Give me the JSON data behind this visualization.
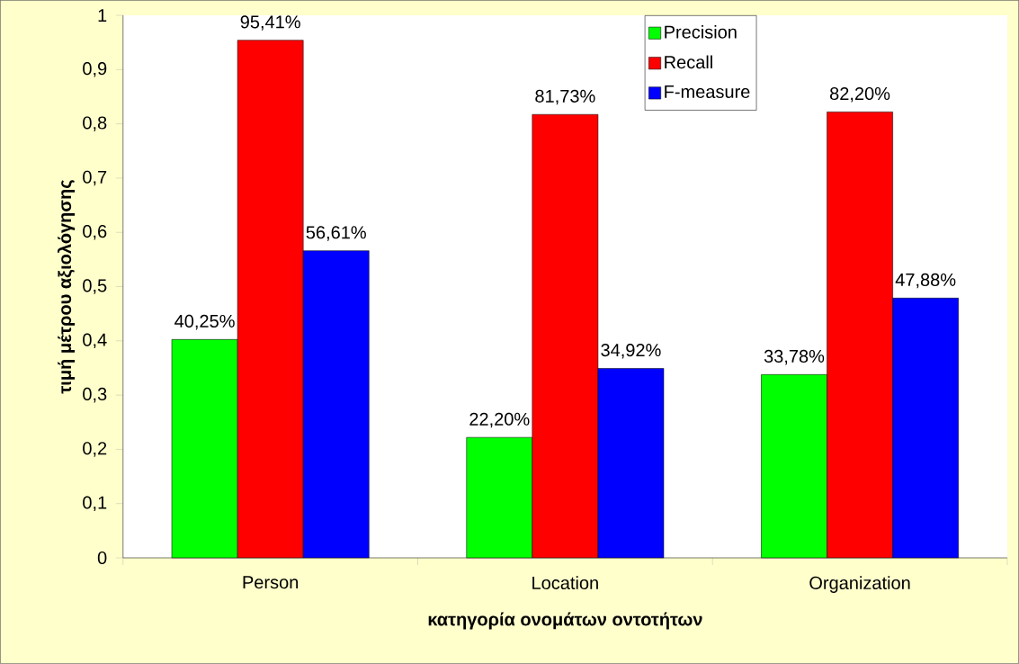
{
  "chart_data": {
    "type": "bar",
    "xlabel": "κατηγορία ονομάτων οντοτήτων",
    "ylabel": "τιμή μέτρου αξιολόγησης",
    "categories": [
      "Person",
      "Location",
      "Organization"
    ],
    "series": [
      {
        "name": "Precision",
        "color": "#00ff00",
        "values": [
          0.4025,
          0.222,
          0.3378
        ],
        "value_labels": [
          "40,25%",
          "22,20%",
          "33,78%"
        ]
      },
      {
        "name": "Recall",
        "color": "#ff0000",
        "values": [
          0.9541,
          0.8173,
          0.822
        ],
        "value_labels": [
          "95,41%",
          "81,73%",
          "82,20%"
        ]
      },
      {
        "name": "F-measure",
        "color": "#0000ff",
        "values": [
          0.5661,
          0.3492,
          0.4788
        ],
        "value_labels": [
          "56,61%",
          "34,92%",
          "47,88%"
        ]
      }
    ],
    "ylim": [
      0,
      1
    ],
    "yticks": [
      {
        "value": 0,
        "label": "0"
      },
      {
        "value": 0.1,
        "label": "0,1"
      },
      {
        "value": 0.2,
        "label": "0,2"
      },
      {
        "value": 0.3,
        "label": "0,3"
      },
      {
        "value": 0.4,
        "label": "0,4"
      },
      {
        "value": 0.5,
        "label": "0,5"
      },
      {
        "value": 0.6,
        "label": "0,6"
      },
      {
        "value": 0.7,
        "label": "0,7"
      },
      {
        "value": 0.8,
        "label": "0,8"
      },
      {
        "value": 0.9,
        "label": "0,9"
      },
      {
        "value": 1,
        "label": "1"
      }
    ],
    "legend": "top right",
    "grid": false
  }
}
